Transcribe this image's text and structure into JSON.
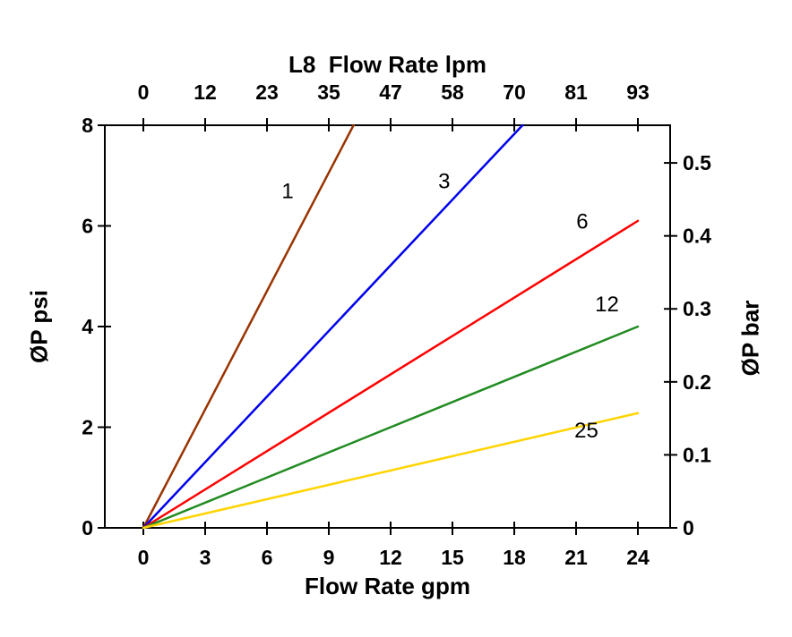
{
  "chart_data": {
    "type": "line",
    "top_axis": {
      "title": "L8  Flow Rate lpm",
      "tick_labels": [
        "0",
        "12",
        "23",
        "35",
        "47",
        "58",
        "70",
        "81",
        "93"
      ]
    },
    "bottom_axis": {
      "title": "Flow Rate gpm",
      "ticks": [
        0,
        3,
        6,
        9,
        12,
        15,
        18,
        21,
        24
      ]
    },
    "left_axis": {
      "title": "ØP psi",
      "ticks": [
        0,
        2,
        4,
        6,
        8
      ],
      "range": [
        0,
        8
      ]
    },
    "right_axis": {
      "title": "ØP bar",
      "ticks": [
        0,
        0.1,
        0.2,
        0.3,
        0.4,
        0.5
      ],
      "tick_labels": [
        "0",
        "0.1",
        "0.2",
        "0.3",
        "0.4",
        "0.5"
      ],
      "range": [
        0,
        0.55
      ]
    },
    "x_range_gpm": [
      0,
      24
    ],
    "grid": "off",
    "legend": "inline-labels",
    "series": [
      {
        "name": "1",
        "color": "#993300",
        "points": [
          [
            0,
            0
          ],
          [
            10.2,
            8
          ]
        ],
        "label_at": [
          7.0,
          6.55
        ]
      },
      {
        "name": "3",
        "color": "#0000EE",
        "points": [
          [
            0,
            0
          ],
          [
            18.4,
            8
          ]
        ],
        "label_at": [
          14.6,
          6.75
        ]
      },
      {
        "name": "6",
        "color": "#FF0000",
        "points": [
          [
            0,
            0
          ],
          [
            24,
            6.1
          ]
        ],
        "label_at": [
          21.3,
          5.95
        ]
      },
      {
        "name": "12",
        "color": "#228B22",
        "points": [
          [
            0,
            0
          ],
          [
            24,
            4.0
          ]
        ],
        "label_at": [
          22.5,
          4.3
        ]
      },
      {
        "name": "25",
        "color": "#FFD400",
        "points": [
          [
            0,
            0
          ],
          [
            24,
            2.28
          ]
        ],
        "label_at": [
          21.5,
          1.8
        ]
      }
    ]
  }
}
